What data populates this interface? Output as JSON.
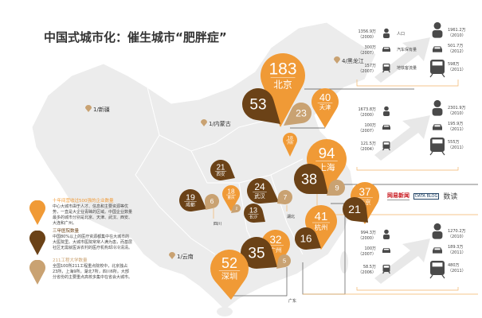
{
  "title": "中国式城市化：催生城市“肥胖症”",
  "colors": {
    "enterprise": "#f09a36",
    "hospital": "#6b4217",
    "university": "#c9a272",
    "map": "#ececec",
    "icon": "#4a4a4a"
  },
  "legend": [
    {
      "title": "十年间营收过500强的企业数量",
      "desc": "中心大城市由于人才、信息和主要资源等优势，一直是大企业青睐的区域。中国企业数量最多的城市分别是北京、天津、武汉、西安、大连和广州。",
      "color": "#f09a36"
    },
    {
      "title": "三甲医院数量",
      "desc": "中国80%以上的医疗资源都集中在大城市的大医院里。大城市医院常常人满为患，而基层社区无需就医诉农村的医疗机构却冷冷清清。",
      "color": "#6b4217"
    },
    {
      "title": "211工程大学数量",
      "desc": "全国100所211工程重点院校中，北京独占23所，上海9所，湖北7所，四川6所。大部分省份的主要重点高校多集中在省会大城市。",
      "color": "#c9a272"
    }
  ],
  "pins": [
    {
      "value": "183",
      "city": "北京",
      "type": "enterprise"
    },
    {
      "value": "53",
      "city": "",
      "type": "hospital"
    },
    {
      "value": "23",
      "city": "",
      "type": "university"
    },
    {
      "value": "40",
      "city": "天津",
      "type": "enterprise"
    },
    {
      "value": "18",
      "city": "济南",
      "type": "enterprise"
    },
    {
      "value": "94",
      "city": "上海",
      "type": "enterprise"
    },
    {
      "value": "38",
      "city": "",
      "type": "hospital"
    },
    {
      "value": "9",
      "city": "",
      "type": "university"
    },
    {
      "value": "37",
      "city": "南京",
      "type": "enterprise"
    },
    {
      "value": "21",
      "city": "",
      "type": "hospital"
    },
    {
      "value": "41",
      "city": "杭州",
      "type": "enterprise"
    },
    {
      "value": "16",
      "city": "",
      "type": "hospital"
    },
    {
      "value": "32",
      "city": "广州",
      "type": "enterprise"
    },
    {
      "value": "35",
      "city": "",
      "type": "hospital"
    },
    {
      "value": "5",
      "city": "",
      "type": "university"
    },
    {
      "value": "52",
      "city": "深圳",
      "type": "enterprise"
    },
    {
      "value": "24",
      "city": "武汉",
      "type": "hospital"
    },
    {
      "value": "7",
      "city": "",
      "type": "university"
    },
    {
      "value": "13",
      "city": "长沙",
      "type": "hospital"
    },
    {
      "value": "21",
      "city": "西安",
      "type": "hospital"
    },
    {
      "value": "19",
      "city": "成都",
      "type": "hospital"
    },
    {
      "value": "6",
      "city": "",
      "type": "university"
    },
    {
      "value": "18",
      "city": "重庆",
      "type": "enterprise"
    },
    {
      "value": "2",
      "city": "",
      "type": "university"
    }
  ],
  "region_labels": [
    "4/黑龙江",
    "1/新疆",
    "1/内蒙古",
    "1/云南",
    "四川",
    "湖北",
    "广东"
  ],
  "panels": [
    {
      "city": "北京",
      "rows": [
        {
          "label": "人口",
          "from": "1356.9万",
          "from_year": "（2000）",
          "to": "1961.2万",
          "to_year": "（2010）",
          "icon": "person"
        },
        {
          "label": "汽车保有量",
          "from": "300万",
          "from_year": "（2007）",
          "to": "501.7万",
          "to_year": "（2012）",
          "icon": "car"
        },
        {
          "label": "地铁客流量",
          "from": "157万",
          "from_year": "（2007）",
          "to": "598万",
          "to_year": "（2011）",
          "icon": "train"
        }
      ]
    },
    {
      "city": "上海",
      "rows": [
        {
          "label": "",
          "from": "1673.8万",
          "from_year": "（2000）",
          "to": "2301.9万",
          "to_year": "（2010）",
          "icon": "person"
        },
        {
          "label": "",
          "from": "100万",
          "from_year": "（2007）",
          "to": "195.9万",
          "to_year": "（2011）",
          "icon": "car"
        },
        {
          "label": "",
          "from": "121.5万",
          "from_year": "（2004）",
          "to": "555万",
          "to_year": "（2011）",
          "icon": "train"
        }
      ]
    },
    {
      "city": "广州",
      "rows": [
        {
          "label": "",
          "from": "994.3万",
          "from_year": "（2000）",
          "to": "1270.2万",
          "to_year": "（2010）",
          "icon": "person"
        },
        {
          "label": "",
          "from": "100万",
          "from_year": "（2007）",
          "to": "189.3万",
          "to_year": "（2011）",
          "icon": "car"
        },
        {
          "label": "",
          "from": "58.5万",
          "from_year": "（2006）",
          "to": "480万",
          "to_year": "（2011）",
          "icon": "train"
        }
      ]
    }
  ],
  "logo": {
    "netease": "网易新闻",
    "databox": "DATA BLOG",
    "shudu": "数读"
  }
}
